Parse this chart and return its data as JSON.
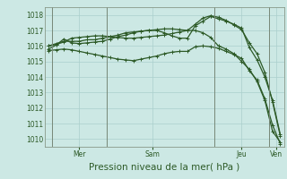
{
  "background_color": "#cce8e4",
  "grid_color": "#aacfcc",
  "line_color": "#2d5a27",
  "title": "Pression niveau de la mer( hPa )",
  "ylim": [
    1009.5,
    1018.5
  ],
  "yticks": [
    1010,
    1011,
    1012,
    1013,
    1014,
    1015,
    1016,
    1017,
    1018
  ],
  "day_labels": [
    "Mer",
    "Sam",
    "Jeu",
    "Ven"
  ],
  "series": [
    [
      1015.8,
      1016.05,
      1016.45,
      1016.2,
      1016.15,
      1016.2,
      1016.25,
      1016.3,
      1016.45,
      1016.6,
      1016.7,
      1016.85,
      1016.95,
      1017.0,
      1017.05,
      1017.1,
      1017.1,
      1017.05,
      1017.0,
      1017.0,
      1016.85,
      1016.55,
      1016.0,
      1015.8,
      1015.5,
      1015.0,
      1014.5,
      1013.7,
      1012.5,
      1010.5,
      1009.8
    ],
    [
      1016.0,
      1016.15,
      1016.3,
      1016.3,
      1016.3,
      1016.4,
      1016.4,
      1016.5,
      1016.6,
      1016.7,
      1016.85,
      1016.9,
      1016.95,
      1017.0,
      1017.0,
      1016.85,
      1016.65,
      1016.5,
      1016.5,
      1017.3,
      1017.6,
      1017.9,
      1017.75,
      1017.6,
      1017.4,
      1017.15,
      1015.9,
      1015.1,
      1014.0,
      1012.5,
      1010.3
    ],
    [
      1016.0,
      1016.1,
      1016.25,
      1016.5,
      1016.55,
      1016.6,
      1016.65,
      1016.65,
      1016.6,
      1016.55,
      1016.5,
      1016.5,
      1016.55,
      1016.6,
      1016.65,
      1016.7,
      1016.8,
      1016.9,
      1017.0,
      1017.4,
      1017.8,
      1017.95,
      1017.85,
      1017.65,
      1017.35,
      1017.05,
      1016.2,
      1015.5,
      1014.3,
      1012.4,
      1010.2
    ],
    [
      1015.7,
      1015.75,
      1015.8,
      1015.75,
      1015.65,
      1015.55,
      1015.45,
      1015.35,
      1015.25,
      1015.15,
      1015.1,
      1015.05,
      1015.15,
      1015.25,
      1015.35,
      1015.5,
      1015.6,
      1015.65,
      1015.65,
      1015.95,
      1016.0,
      1015.95,
      1015.85,
      1015.65,
      1015.45,
      1015.2,
      1014.4,
      1013.8,
      1012.6,
      1010.9,
      1009.7
    ]
  ],
  "marker": "+",
  "marker_size": 3,
  "linewidth": 0.9,
  "tick_fontsize": 5.5,
  "label_fontsize": 7.5
}
